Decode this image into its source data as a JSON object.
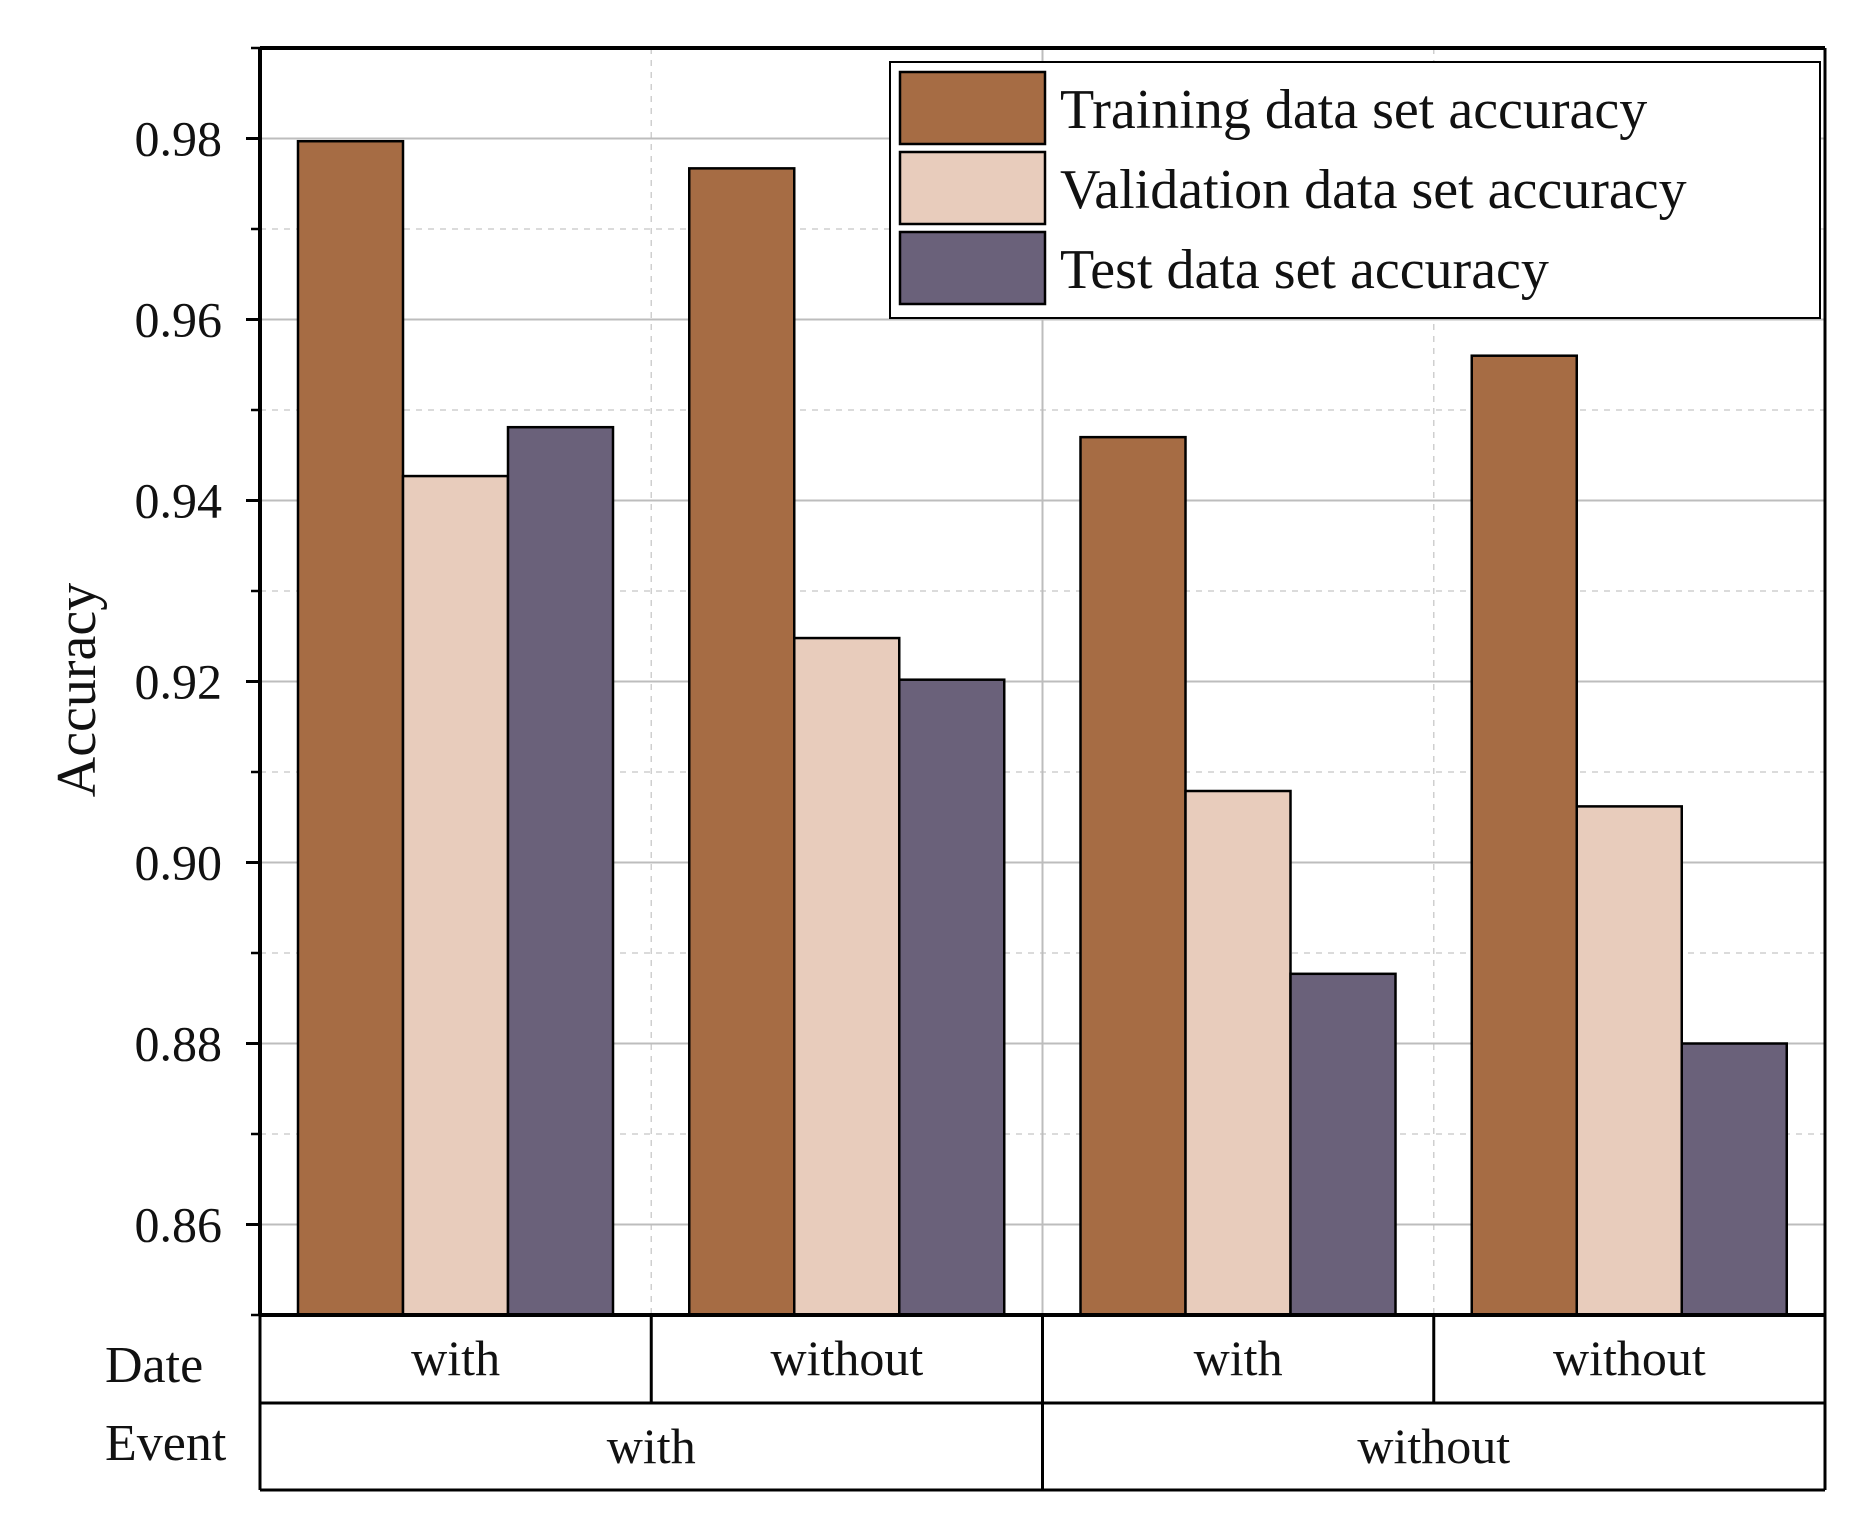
{
  "chart_data": {
    "type": "bar",
    "ylabel": "Accuracy",
    "ylim": [
      0.85,
      0.99
    ],
    "yticks": [
      "0.86",
      "0.88",
      "0.90",
      "0.92",
      "0.94",
      "0.96",
      "0.98"
    ],
    "grid": true,
    "legend_position": "top-right",
    "categories": [
      {
        "date": "with",
        "event": "with"
      },
      {
        "date": "without",
        "event": "with"
      },
      {
        "date": "with",
        "event": "without"
      },
      {
        "date": "without",
        "event": "without"
      }
    ],
    "series": [
      {
        "name": "Training data set accuracy",
        "color": "#A66C44",
        "values": [
          0.9797,
          0.9767,
          0.947,
          0.956
        ]
      },
      {
        "name": "Validation data set accuracy",
        "color": "#E8CCBC",
        "values": [
          0.9427,
          0.9248,
          0.9079,
          0.9062
        ]
      },
      {
        "name": "Test data set accuracy",
        "color": "#6A617A",
        "values": [
          0.9481,
          0.9202,
          0.8877,
          0.88
        ]
      }
    ],
    "x_rows": [
      {
        "label": "Date",
        "cells": [
          "with",
          "without",
          "with",
          "without"
        ]
      },
      {
        "label": "Event",
        "cells": [
          "with",
          "without"
        ]
      }
    ]
  }
}
